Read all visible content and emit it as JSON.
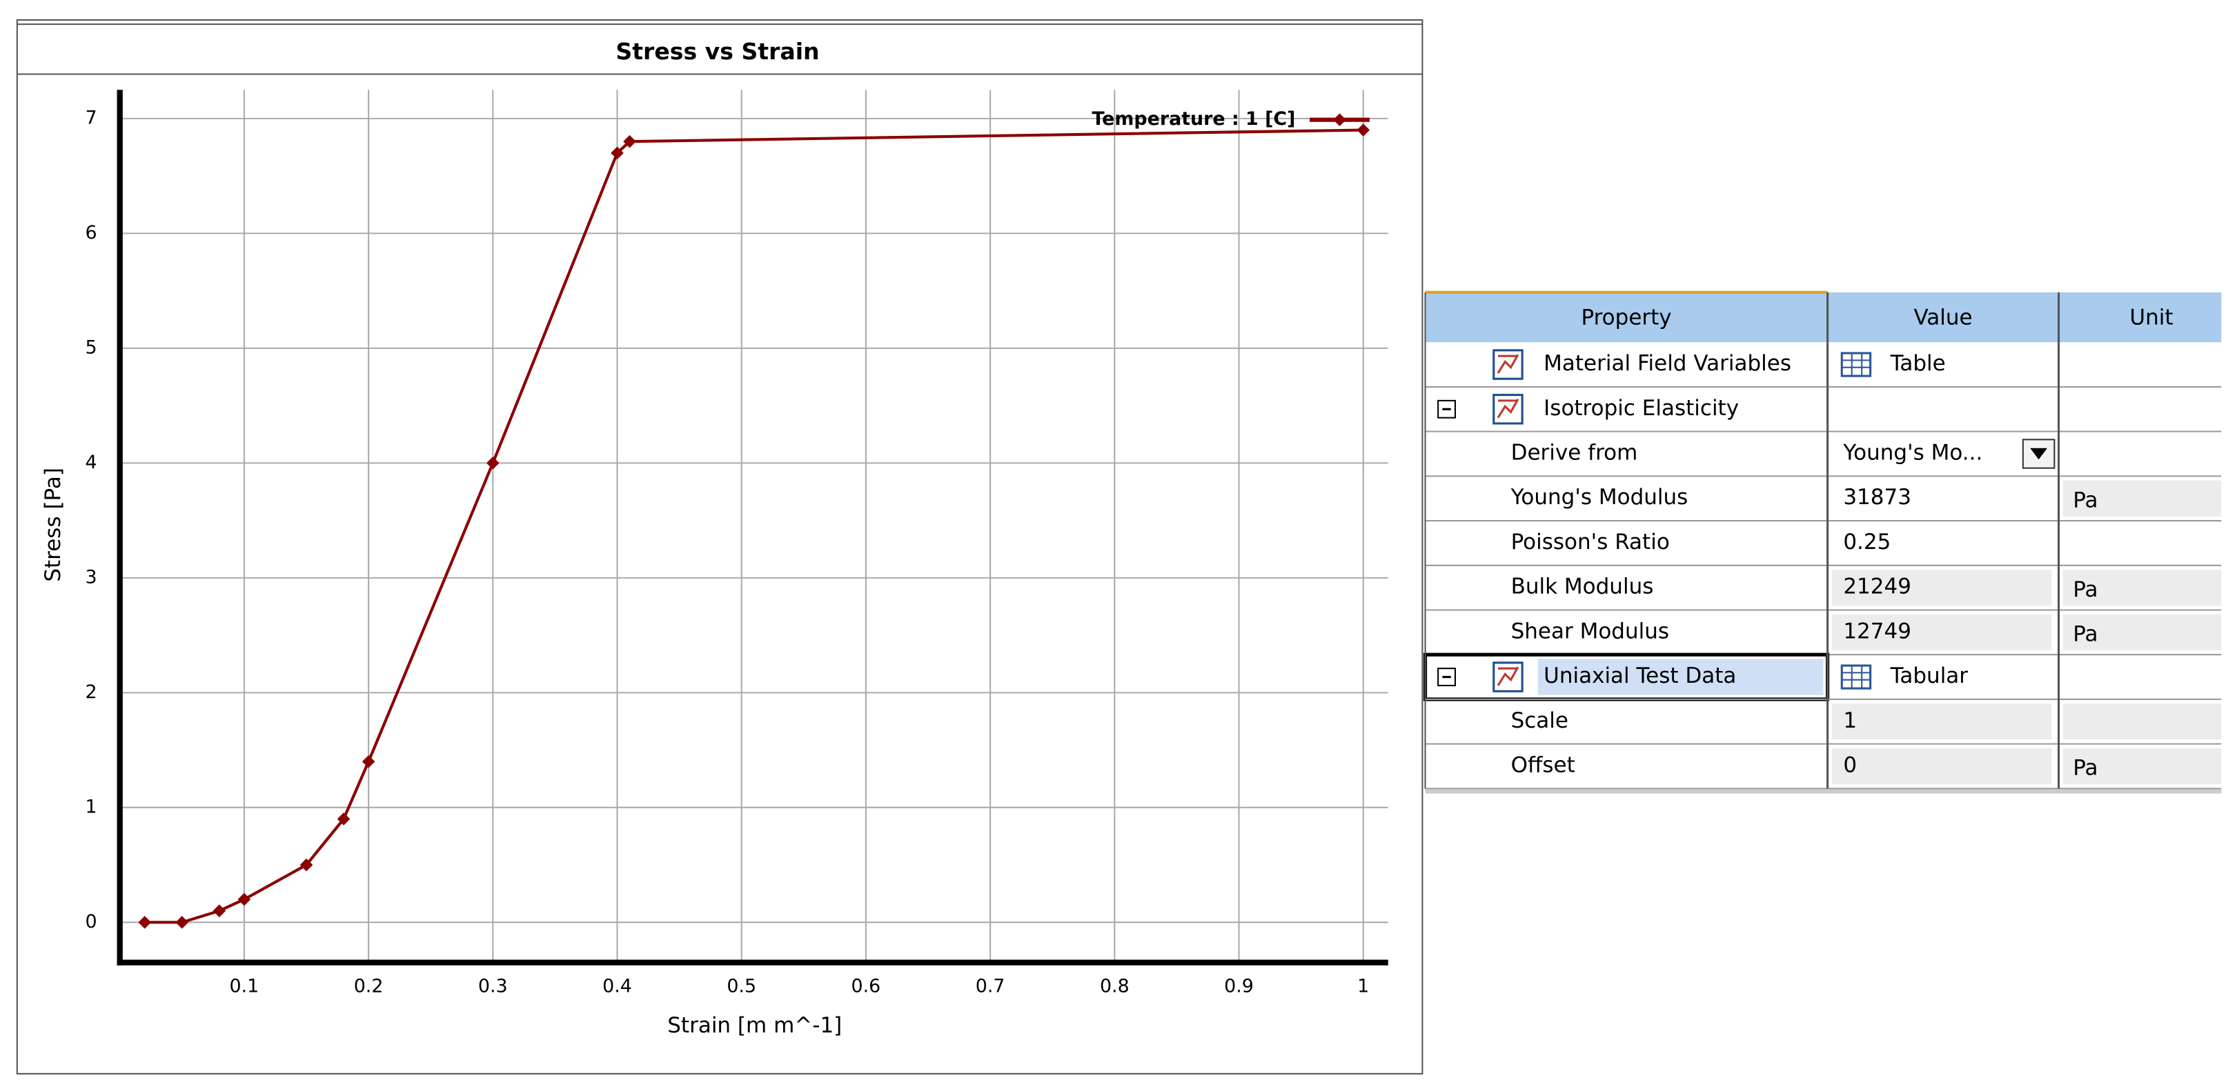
{
  "chart_data": {
    "type": "line",
    "title": "Stress vs Strain",
    "x_label": "Strain  [m m^-1]",
    "y_label": "Stress  [Pa]",
    "x": [
      0.02,
      0.05,
      0.08,
      0.1,
      0.15,
      0.18,
      0.2,
      0.3,
      0.4,
      0.41,
      1
    ],
    "series": [
      {
        "name": "Temperature : 1 [C]",
        "color": "#8b0000",
        "values": [
          0,
          0,
          0.1,
          0.2,
          0.5,
          0.9,
          1.4,
          4,
          6.7,
          6.8,
          6.9
        ]
      }
    ],
    "xlim": [
      0,
      1.02
    ],
    "ylim": [
      -0.35,
      7.25
    ],
    "xticks": [
      0.1,
      0.2,
      0.3,
      0.4,
      0.5,
      0.6,
      0.7,
      0.8,
      0.9,
      1
    ],
    "yticks": [
      0,
      1,
      2,
      3,
      4,
      5,
      6,
      7
    ],
    "grid": true,
    "legend": "top-right"
  },
  "table": {
    "headers": [
      "Property",
      "Value",
      "Unit"
    ],
    "rows": [
      {
        "property": "Material Field Variables",
        "value": "Table",
        "icon": true,
        "value_icon": true
      },
      {
        "property": "Isotropic Elasticity",
        "icon": true,
        "expander": true
      },
      {
        "property": "Derive from",
        "value": "Young's Mo...",
        "dropdown": true
      },
      {
        "property": "Young's Modulus",
        "value": 31873,
        "unit": "Pa"
      },
      {
        "property": "Poisson's Ratio",
        "value": 0.25
      },
      {
        "property": "Bulk Modulus",
        "value": 21249,
        "unit": "Pa",
        "readonly": true
      },
      {
        "property": "Shear Modulus",
        "value": 12749,
        "unit": "Pa",
        "readonly": true
      },
      {
        "property": "Uniaxial Test Data",
        "value": "Tabular",
        "icon": true,
        "expander": true,
        "value_icon": true,
        "selected": true
      },
      {
        "property": "Scale",
        "value": 1,
        "readonly": true,
        "unit_readonly": true
      },
      {
        "property": "Offset",
        "value": 0,
        "unit": "Pa",
        "readonly": true
      }
    ]
  }
}
